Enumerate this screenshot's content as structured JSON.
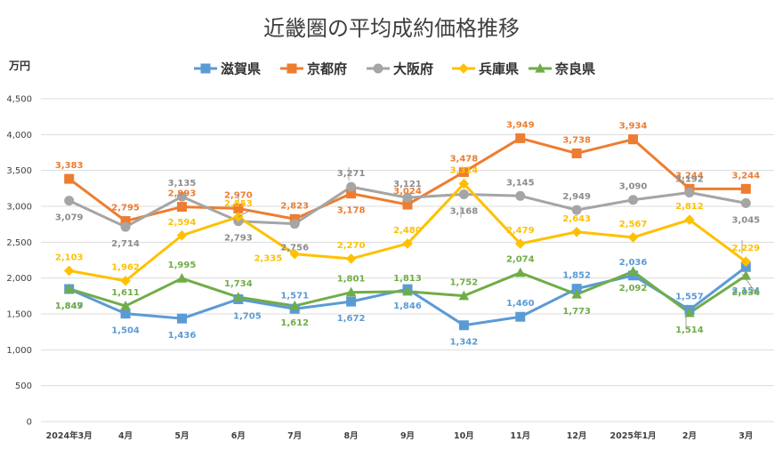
{
  "chart_data": {
    "type": "line",
    "title": "近畿圏の平均成約価格推移",
    "ylabel": "万円",
    "xlabel": "",
    "ylim": [
      0,
      4500
    ],
    "yticks": [
      0,
      500,
      1000,
      1500,
      2000,
      2500,
      3000,
      3500,
      4000,
      4500
    ],
    "ytick_labels": [
      "0",
      "500",
      "1,000",
      "1,500",
      "2,000",
      "2,500",
      "3,000",
      "3,500",
      "4,000",
      "4,500"
    ],
    "grid": true,
    "legend_position": "top",
    "categories": [
      "2024年3月",
      "4月",
      "5月",
      "6月",
      "7月",
      "8月",
      "9月",
      "10月",
      "11月",
      "12月",
      "2025年1月",
      "2月",
      "3月"
    ],
    "series": [
      {
        "name": "滋賀県",
        "color": "#5B9BD5",
        "marker": "square",
        "values": [
          1847,
          1504,
          1436,
          1705,
          1571,
          1672,
          1846,
          1342,
          1460,
          1852,
          2036,
          1557,
          2154
        ],
        "labels": [
          "1,847",
          "1,504",
          "1,436",
          "1,705",
          "1,571",
          "1,672",
          "1,846",
          "1,342",
          "1,460",
          "1,852",
          "2,036",
          "1,557",
          "2,154"
        ]
      },
      {
        "name": "京都府",
        "color": "#ED7D31",
        "marker": "square",
        "values": [
          3383,
          2795,
          2993,
          2970,
          2823,
          3178,
          3024,
          3478,
          3949,
          3738,
          3934,
          3244,
          3244
        ],
        "labels": [
          "3,383",
          "2,795",
          "2,993",
          "2,970",
          "2,823",
          "3,178",
          "3,024",
          "3,478",
          "3,949",
          "3,738",
          "3,934",
          "3,244",
          "3,244"
        ]
      },
      {
        "name": "大阪府",
        "color": "#A5A5A5",
        "marker": "circle",
        "values": [
          3079,
          2714,
          3135,
          2793,
          2756,
          3271,
          3121,
          3168,
          3145,
          2949,
          3090,
          3192,
          3045
        ],
        "labels": [
          "3,079",
          "2,714",
          "3,135",
          "2,793",
          "2,756",
          "3,271",
          "3,121",
          "3,168",
          "3,145",
          "2,949",
          "3,090",
          "3,192",
          "3,045"
        ]
      },
      {
        "name": "兵庫県",
        "color": "#FFC000",
        "marker": "diamond",
        "values": [
          2103,
          1962,
          2594,
          2853,
          2335,
          2270,
          2480,
          3314,
          2479,
          2643,
          2567,
          2812,
          2229
        ],
        "labels": [
          "2,103",
          "1,962",
          "2,594",
          "2,853",
          "2,335",
          "2,270",
          "2,480",
          "3,314",
          "2,479",
          "2,643",
          "2,567",
          "2,812",
          "2,229"
        ]
      },
      {
        "name": "奈良県",
        "color": "#70AD47",
        "marker": "triangle",
        "values": [
          1849,
          1611,
          1995,
          1734,
          1612,
          1801,
          1813,
          1752,
          2074,
          1773,
          2092,
          1514,
          2034
        ],
        "labels": [
          "1,849",
          "1,611",
          "1,995",
          "1,734",
          "1,612",
          "1,801",
          "1,813",
          "1,752",
          "2,074",
          "1,773",
          "2,092",
          "1,514",
          "2,034"
        ]
      }
    ]
  }
}
